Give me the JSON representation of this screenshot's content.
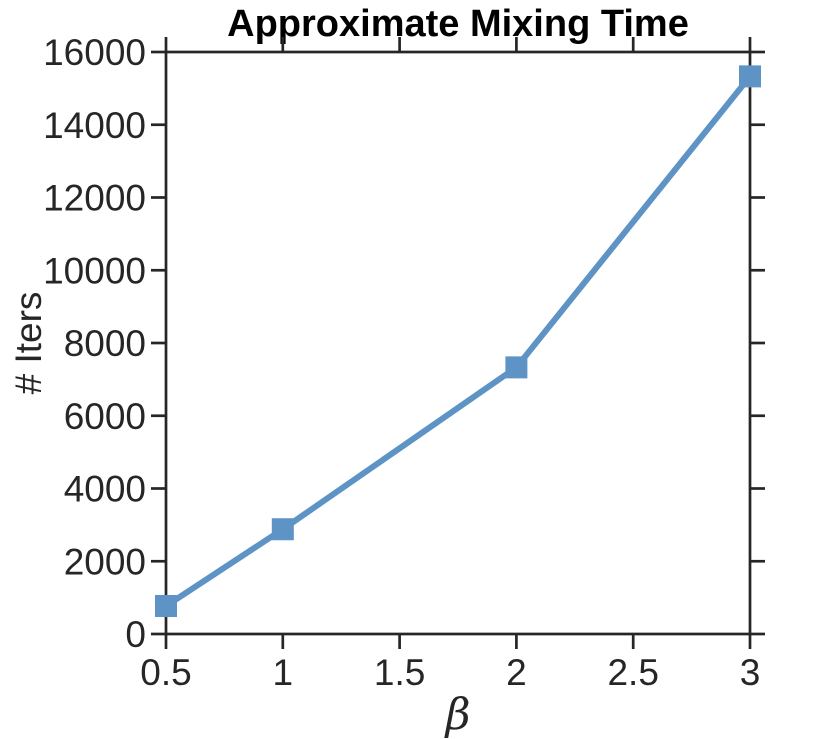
{
  "chart_data": {
    "type": "line",
    "title": "Approximate Mixing Time",
    "xlabel": "β",
    "ylabel": "# Iters",
    "x": [
      0.5,
      1,
      2,
      3
    ],
    "y": [
      770,
      2880,
      7330,
      15330
    ],
    "xlim": [
      0.5,
      3
    ],
    "ylim": [
      0,
      16000
    ],
    "xticks": [
      0.5,
      1,
      1.5,
      2,
      2.5,
      3
    ],
    "xtick_labels": [
      "0.5",
      "1",
      "1.5",
      "2",
      "2.5",
      "3"
    ],
    "yticks": [
      0,
      2000,
      4000,
      6000,
      8000,
      10000,
      12000,
      14000,
      16000
    ],
    "ytick_labels": [
      "0",
      "2000",
      "4000",
      "6000",
      "8000",
      "10000",
      "12000",
      "14000",
      "16000"
    ],
    "grid": false,
    "legend": null,
    "box": true,
    "tick_direction": "out",
    "marker": "square",
    "line_color": "#5E93C5",
    "axis_color": "#262626",
    "title_color": "#000000",
    "background": "#FFFFFF"
  }
}
